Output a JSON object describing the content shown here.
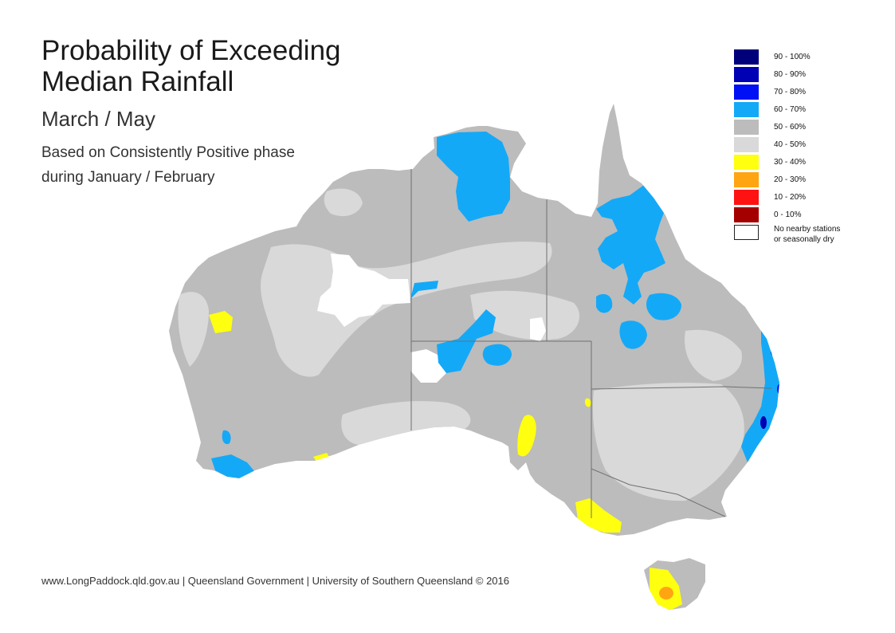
{
  "title_line1": "Probability of Exceeding",
  "title_line2": "Median Rainfall",
  "period": "March / May",
  "caption_line1": "Based on Consistently Positive phase",
  "caption_line2": "during January / February",
  "footer": "www.LongPaddock.qld.gov.au | Queensland Government | University of Southern Queensland © 2016",
  "legend": [
    {
      "label": "90 - 100%",
      "color": "#00007a"
    },
    {
      "label": "80 - 90%",
      "color": "#0000b4"
    },
    {
      "label": "70 - 80%",
      "color": "#0010f5"
    },
    {
      "label": "60 - 70%",
      "color": "#14a9f7"
    },
    {
      "label": "50 - 60%",
      "color": "#bcbcbc"
    },
    {
      "label": "40 - 50%",
      "color": "#d9d9d9"
    },
    {
      "label": "30 - 40%",
      "color": "#ffff10"
    },
    {
      "label": "20 - 30%",
      "color": "#ffa512"
    },
    {
      "label": "10 - 20%",
      "color": "#ff1212"
    },
    {
      "label": "0 - 10%",
      "color": "#a50000"
    }
  ],
  "legend_nodata": {
    "line1": "No nearby stations",
    "line2": "or seasonally dry",
    "color": "#ffffff"
  },
  "colors": {
    "prob_50_60": "#bcbcbc",
    "prob_40_50": "#d9d9d9",
    "prob_60_70": "#14a9f7",
    "prob_70_80": "#0010f5",
    "prob_80_90": "#0000b4",
    "prob_30_40": "#ffff10",
    "prob_20_30": "#ffa512",
    "no_data": "#ffffff",
    "border": "#707070"
  }
}
